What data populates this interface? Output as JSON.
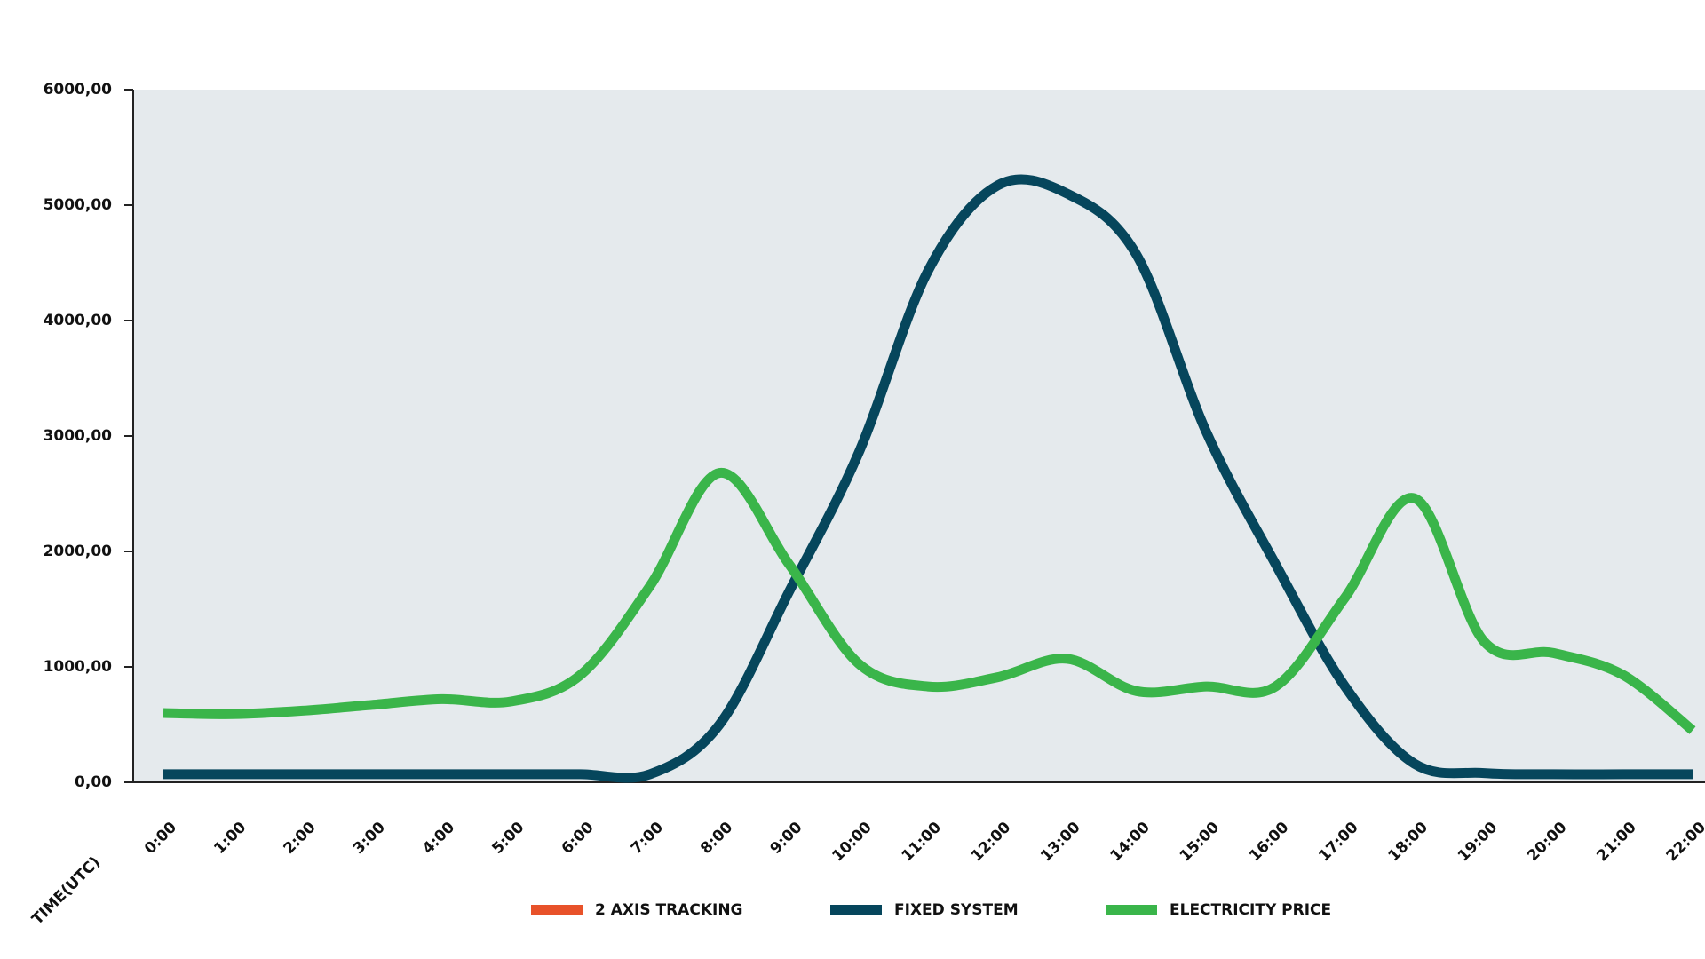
{
  "chart_data": {
    "type": "line",
    "x_label": "TIME(UTC)",
    "categories": [
      "0:00",
      "1:00",
      "2:00",
      "3:00",
      "4:00",
      "5:00",
      "6:00",
      "7:00",
      "8:00",
      "9:00",
      "10:00",
      "11:00",
      "12:00",
      "13:00",
      "14:00",
      "15:00",
      "16:00",
      "17:00",
      "18:00",
      "19:00",
      "20:00",
      "21:00",
      "22:00"
    ],
    "series": [
      {
        "name": "2 AXIS TRACKING",
        "color": "#e8522a",
        "values": [
          null,
          null,
          null,
          null,
          null,
          null,
          null,
          null,
          null,
          null,
          null,
          null,
          null,
          null,
          null,
          null,
          null,
          null,
          null,
          null,
          null,
          null,
          null
        ]
      },
      {
        "name": "FIXED SYSTEM",
        "color": "#06465c",
        "values": [
          70,
          70,
          70,
          70,
          70,
          70,
          70,
          70,
          500,
          1650,
          2850,
          4430,
          5170,
          5100,
          4570,
          3040,
          1890,
          830,
          160,
          80,
          70,
          70,
          70
        ]
      },
      {
        "name": "ELECTRICITY PRICE",
        "color": "#3ab54a",
        "values": [
          600,
          590,
          620,
          670,
          720,
          700,
          930,
          1700,
          2680,
          1890,
          1030,
          830,
          910,
          1070,
          790,
          830,
          830,
          1600,
          2460,
          1220,
          1120,
          930,
          450
        ]
      }
    ],
    "ylim": [
      0,
      6000
    ],
    "yticks": [
      {
        "value": 0,
        "label": "0,00"
      },
      {
        "value": 1000,
        "label": "1000,00"
      },
      {
        "value": 2000,
        "label": "2000,00"
      },
      {
        "value": 3000,
        "label": "3000,00"
      },
      {
        "value": 4000,
        "label": "4000,00"
      },
      {
        "value": 5000,
        "label": "5000,00"
      },
      {
        "value": 6000,
        "label": "6000,00"
      }
    ],
    "background": "#e5eaed"
  }
}
